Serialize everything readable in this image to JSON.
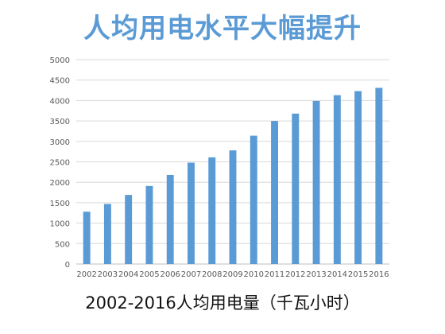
{
  "chart_data": {
    "type": "bar",
    "title": "人均用电水平大幅提升",
    "caption": "2002-2016人均用电量（千瓦小时）",
    "categories": [
      "2002",
      "2003",
      "2004",
      "2005",
      "2006",
      "2007",
      "2008",
      "2009",
      "2010",
      "2011",
      "2012",
      "2013",
      "2014",
      "2015",
      "2016"
    ],
    "values": [
      1280,
      1470,
      1690,
      1910,
      2180,
      2480,
      2610,
      2780,
      3140,
      3500,
      3680,
      3990,
      4130,
      4230,
      4310
    ],
    "ylim": [
      0,
      5000
    ],
    "yticks": [
      0,
      500,
      1000,
      1500,
      2000,
      2500,
      3000,
      3500,
      4000,
      4500,
      5000
    ],
    "grid": true,
    "legend": "none",
    "bar_color": "#5b9bd5",
    "grid_color": "#d9d9d9",
    "title_color": "#5b9bd5"
  }
}
